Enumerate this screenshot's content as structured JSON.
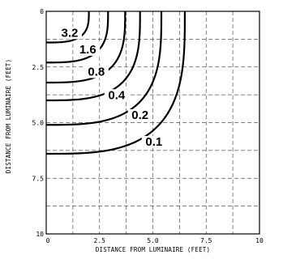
{
  "chart_data": {
    "type": "contour",
    "xlabel": "DISTANCE FROM LUMINAIRE (FEET)",
    "ylabel": "DISTANCE FROM LUMINAIRE (FEET)",
    "xlim": [
      0,
      10
    ],
    "ylim": [
      0,
      10
    ],
    "y_inverted": true,
    "grid": true,
    "grid_step": 1.25,
    "x_ticks": [
      {
        "value": 0,
        "label": "0"
      },
      {
        "value": 2.5,
        "label": "2.5"
      },
      {
        "value": 5,
        "label": "5.0"
      },
      {
        "value": 7.5,
        "label": "7.5"
      },
      {
        "value": 10,
        "label": "10"
      }
    ],
    "y_ticks": [
      {
        "value": 0,
        "label": "0"
      },
      {
        "value": 2.5,
        "label": "2.5"
      },
      {
        "value": 5,
        "label": "5.0"
      },
      {
        "value": 7.5,
        "label": "7.5"
      },
      {
        "value": 10,
        "label": "10"
      }
    ],
    "contours": [
      {
        "label": "3.2",
        "x_max": 2.0,
        "y_max": 1.4,
        "label_at": [
          1.1,
          1.1
        ]
      },
      {
        "label": "1.6",
        "x_max": 2.9,
        "y_max": 2.3,
        "label_at": [
          1.95,
          1.85
        ]
      },
      {
        "label": "0.8",
        "x_max": 3.7,
        "y_max": 3.2,
        "label_at": [
          2.35,
          2.85
        ]
      },
      {
        "label": "0.4",
        "x_max": 4.4,
        "y_max": 4.0,
        "label_at": [
          3.3,
          3.9
        ]
      },
      {
        "label": "0.2",
        "x_max": 5.4,
        "y_max": 5.1,
        "label_at": [
          4.4,
          4.8
        ]
      },
      {
        "label": "0.1",
        "x_max": 6.5,
        "y_max": 6.4,
        "label_at": [
          5.05,
          6.0
        ]
      }
    ]
  }
}
